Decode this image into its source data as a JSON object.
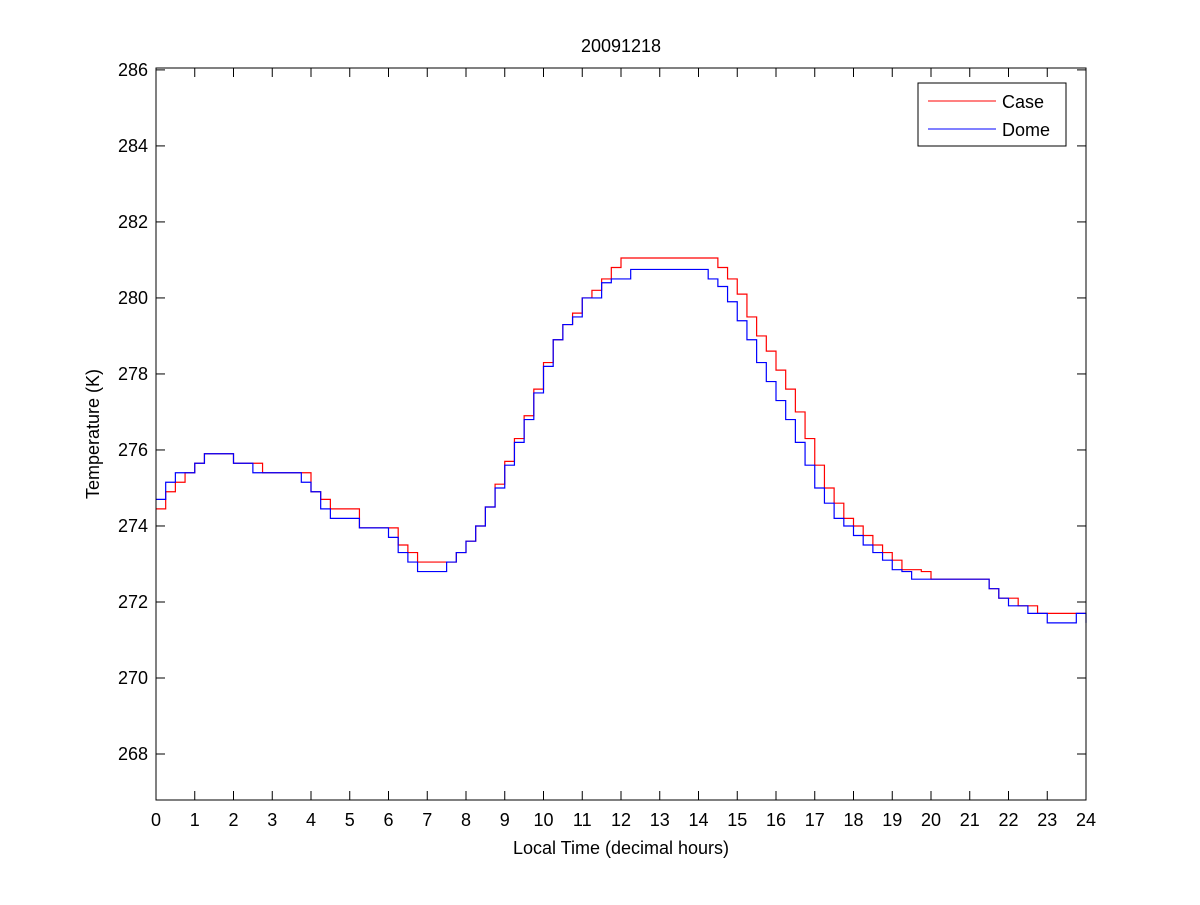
{
  "chart_data": {
    "type": "line",
    "title": "20091218",
    "xlabel": "Local Time (decimal hours)",
    "ylabel": "Temperature (K)",
    "xlim": [
      0,
      24
    ],
    "ylim": [
      266.79,
      286.05
    ],
    "xticks": [
      0,
      1,
      2,
      3,
      4,
      5,
      6,
      7,
      8,
      9,
      10,
      11,
      12,
      13,
      14,
      15,
      16,
      17,
      18,
      19,
      20,
      21,
      22,
      23,
      24
    ],
    "yticks": [
      268,
      270,
      272,
      274,
      276,
      278,
      280,
      282,
      284,
      286
    ],
    "grid": false,
    "legend_position": "top-right",
    "x_start": 0,
    "x_step": 0.25,
    "series": [
      {
        "name": "Case",
        "color": "#ff0000",
        "values": [
          274.45,
          274.9,
          275.15,
          275.4,
          275.65,
          275.9,
          275.9,
          275.9,
          275.65,
          275.65,
          275.65,
          275.4,
          275.4,
          275.4,
          275.4,
          275.4,
          274.9,
          274.7,
          274.45,
          274.45,
          274.45,
          273.95,
          273.95,
          273.95,
          273.95,
          273.5,
          273.3,
          273.05,
          273.05,
          273.05,
          273.05,
          273.3,
          273.6,
          274.0,
          274.5,
          275.1,
          275.7,
          276.3,
          276.9,
          277.6,
          278.3,
          278.9,
          279.3,
          279.6,
          280.0,
          280.2,
          280.5,
          280.8,
          281.05,
          281.05,
          281.05,
          281.05,
          281.05,
          281.05,
          281.05,
          281.05,
          281.05,
          281.05,
          280.8,
          280.5,
          280.1,
          279.5,
          279.0,
          278.6,
          278.1,
          277.6,
          277.0,
          276.3,
          275.6,
          275.0,
          274.6,
          274.2,
          274.0,
          273.75,
          273.5,
          273.3,
          273.1,
          272.85,
          272.85,
          272.8,
          272.6,
          272.6,
          272.6,
          272.6,
          272.6,
          272.6,
          272.35,
          272.1,
          272.1,
          271.9,
          271.9,
          271.7,
          271.7,
          271.7,
          271.7,
          271.7,
          271.7
        ]
      },
      {
        "name": "Dome",
        "color": "#0000ff",
        "values": [
          274.7,
          275.15,
          275.4,
          275.4,
          275.65,
          275.9,
          275.9,
          275.9,
          275.65,
          275.65,
          275.4,
          275.4,
          275.4,
          275.4,
          275.4,
          275.15,
          274.9,
          274.45,
          274.2,
          274.2,
          274.2,
          273.95,
          273.95,
          273.95,
          273.7,
          273.3,
          273.05,
          272.8,
          272.8,
          272.8,
          273.05,
          273.3,
          273.6,
          274.0,
          274.5,
          275.0,
          275.6,
          276.2,
          276.8,
          277.5,
          278.2,
          278.9,
          279.3,
          279.5,
          280.0,
          280.0,
          280.4,
          280.5,
          280.5,
          280.75,
          280.75,
          280.75,
          280.75,
          280.75,
          280.75,
          280.75,
          280.75,
          280.5,
          280.3,
          279.9,
          279.4,
          278.9,
          278.3,
          277.8,
          277.3,
          276.8,
          276.2,
          275.6,
          275.0,
          274.6,
          274.2,
          274.0,
          273.75,
          273.5,
          273.3,
          273.1,
          272.85,
          272.8,
          272.6,
          272.6,
          272.6,
          272.6,
          272.6,
          272.6,
          272.6,
          272.6,
          272.35,
          272.1,
          271.9,
          271.9,
          271.7,
          271.7,
          271.45,
          271.45,
          271.45,
          271.7,
          271.45
        ]
      }
    ]
  }
}
